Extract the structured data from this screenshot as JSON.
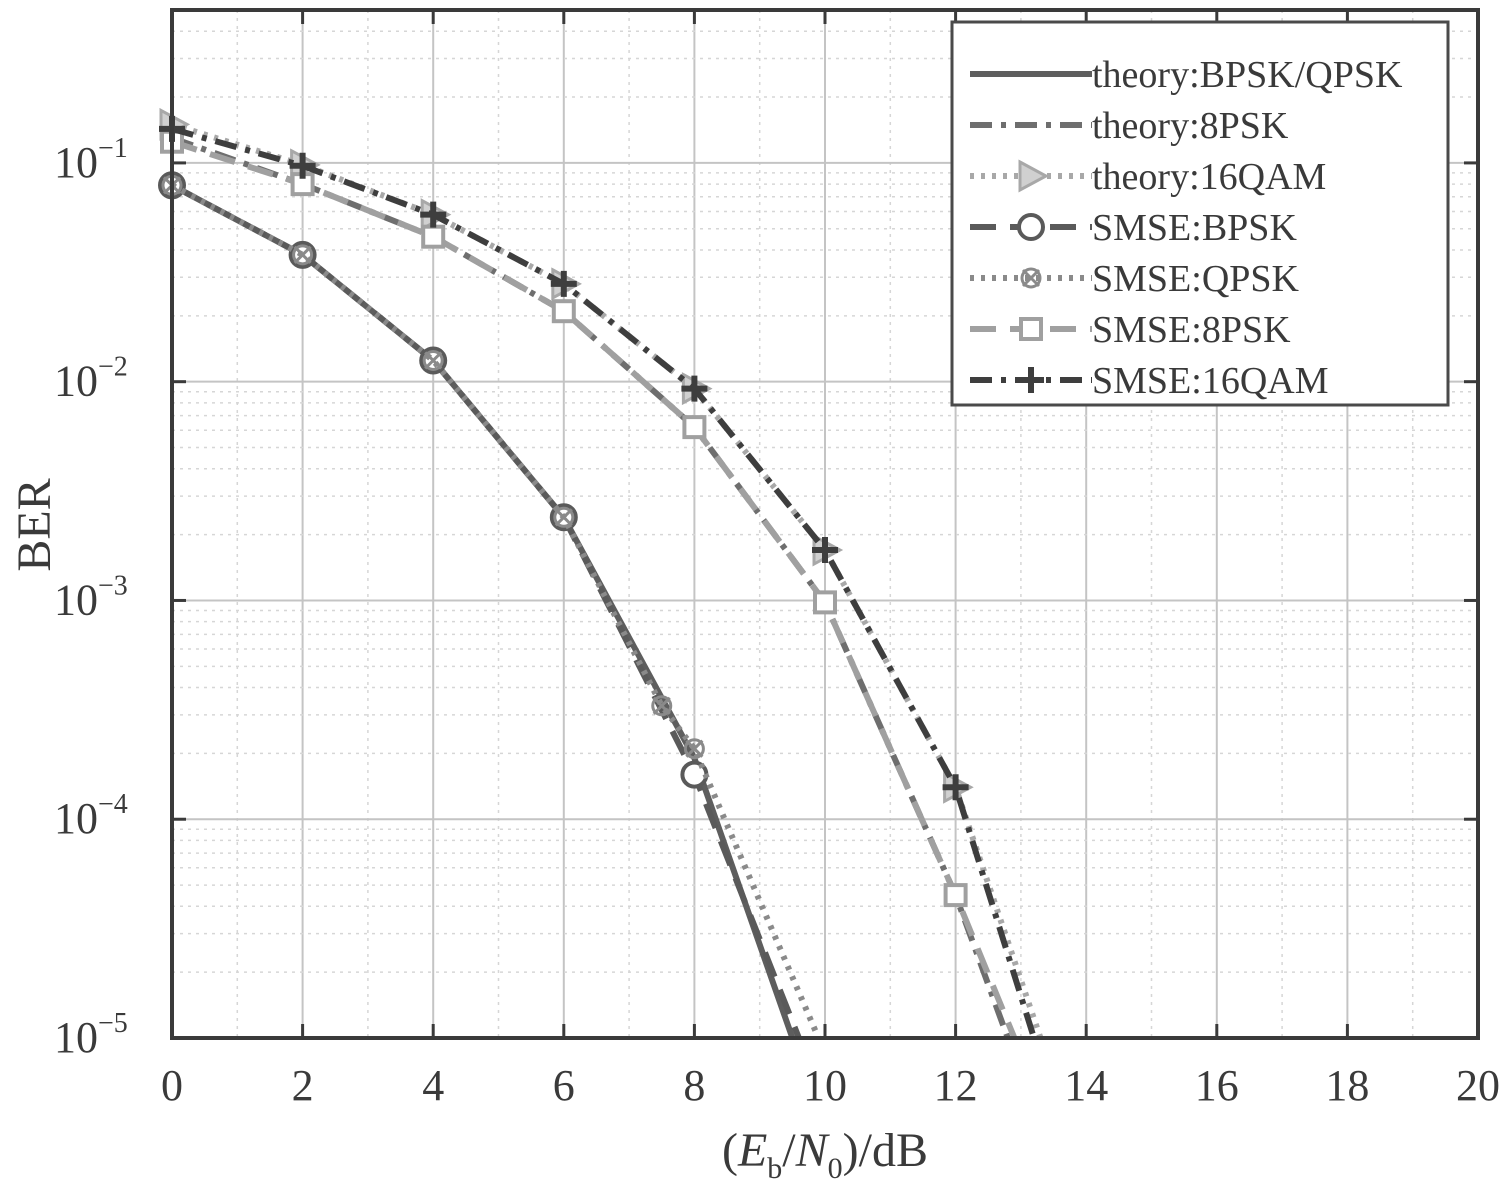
{
  "chart_data": {
    "type": "line",
    "title": "",
    "xlabel": {
      "open": "(",
      "main1": "E",
      "sub1": "b",
      "slash": "/",
      "main2": "N",
      "sub2": "0",
      "close": ")/dB"
    },
    "ylabel": "BER",
    "xlim": [
      0,
      20
    ],
    "ylim": [
      1e-05,
      0.5
    ],
    "yscale": "log",
    "grid": true,
    "legend_position": "top-right",
    "x_ticks": [
      "0",
      "2",
      "4",
      "6",
      "8",
      "10",
      "12",
      "14",
      "16",
      "18",
      "20"
    ],
    "y_ticks": [
      {
        "base": "10",
        "exp": "−1"
      },
      {
        "base": "10",
        "exp": "−2"
      },
      {
        "base": "10",
        "exp": "−3"
      },
      {
        "base": "10",
        "exp": "−4"
      },
      {
        "base": "10",
        "exp": "−5"
      }
    ],
    "series": [
      {
        "name": "theory:BPSK/QPSK",
        "color": "#5e5e5e",
        "style": "solid",
        "marker": "none",
        "x": [
          0,
          2,
          4,
          6,
          8,
          9.5
        ],
        "y": [
          0.079,
          0.038,
          0.0125,
          0.0024,
          0.00019,
          1e-05
        ]
      },
      {
        "name": "theory:8PSK",
        "color": "#6e6e6e",
        "style": "dashdot",
        "marker": "none",
        "x": [
          0,
          2,
          4,
          6,
          8,
          10,
          12,
          12.8
        ],
        "y": [
          0.13,
          0.08,
          0.046,
          0.021,
          0.0062,
          0.00098,
          4.5e-05,
          1e-05
        ]
      },
      {
        "name": "theory:16QAM",
        "color": "#a8a8a8",
        "style": "dotted",
        "marker": "triangle-right",
        "x": [
          0,
          2,
          4,
          6,
          8,
          10,
          12,
          13.3
        ],
        "y": [
          0.15,
          0.098,
          0.058,
          0.028,
          0.0093,
          0.0017,
          0.00014,
          1e-05
        ]
      },
      {
        "name": "SMSE:BPSK",
        "color": "#5a5a5a",
        "style": "dashed",
        "marker": "circle",
        "x": [
          0,
          2,
          4,
          6,
          8,
          9.6
        ],
        "y": [
          0.079,
          0.038,
          0.0125,
          0.0024,
          0.00016,
          1e-05
        ]
      },
      {
        "name": "SMSE:QPSK",
        "color": "#8a8a8a",
        "style": "dotted",
        "marker": "x-circle",
        "x": [
          0,
          2,
          4,
          6,
          7.5,
          8,
          9.9
        ],
        "y": [
          0.079,
          0.038,
          0.0125,
          0.0024,
          0.00033,
          0.00021,
          1e-05
        ]
      },
      {
        "name": "SMSE:8PSK",
        "color": "#a0a0a0",
        "style": "dashed",
        "marker": "square",
        "x": [
          0,
          2,
          4,
          6,
          8,
          10,
          12,
          12.9
        ],
        "y": [
          0.125,
          0.08,
          0.046,
          0.021,
          0.0062,
          0.00098,
          4.5e-05,
          1e-05
        ]
      },
      {
        "name": "SMSE:16QAM",
        "color": "#3e3e3e",
        "style": "dashdot",
        "marker": "plus",
        "x": [
          0,
          2,
          4,
          6,
          8,
          10,
          12,
          13.2
        ],
        "y": [
          0.143,
          0.097,
          0.058,
          0.028,
          0.0093,
          0.0017,
          0.00014,
          1e-05
        ]
      }
    ]
  }
}
